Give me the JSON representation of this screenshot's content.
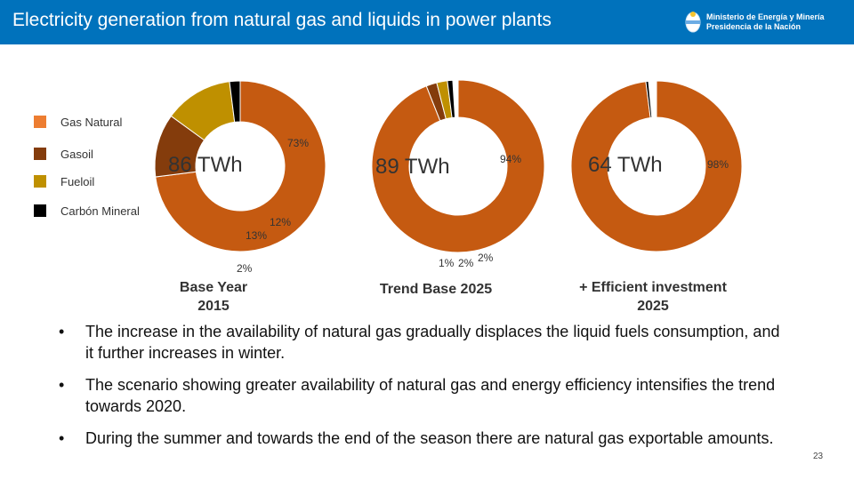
{
  "header": {
    "title": "Electricity generation from natural gas and liquids in power plants",
    "logo_line1": "Ministerio de Energía y Minería",
    "logo_line2": "Presidencia de la Nación"
  },
  "colors": {
    "header_bg": "#0072bc",
    "gas": "#c55a11",
    "gasoil": "#843c0c",
    "fueloil": "#bf9000",
    "carbon": "#000000"
  },
  "chart_data": [
    {
      "type": "pie",
      "title": "Base Year 2015",
      "total_label": "86 TWh",
      "series": [
        {
          "name": "Gas Natural",
          "value": 73,
          "label": "73%"
        },
        {
          "name": "Gasoil",
          "value": 12,
          "label": "12%"
        },
        {
          "name": "Fueloil",
          "value": 13,
          "label": "13%"
        },
        {
          "name": "Carbón Mineral",
          "value": 2,
          "label": "2%"
        }
      ]
    },
    {
      "type": "pie",
      "title": "Trend Base 2025",
      "total_label": "89 TWh",
      "series": [
        {
          "name": "Gas Natural",
          "value": 94,
          "label": "94%"
        },
        {
          "name": "Gasoil",
          "value": 2,
          "label": "2%"
        },
        {
          "name": "Fueloil",
          "value": 2,
          "label": "2%"
        },
        {
          "name": "Carbón Mineral",
          "value": 1,
          "label": "1%"
        }
      ]
    },
    {
      "type": "pie",
      "title": "+ Efficient investment 2025",
      "total_label": "64 TWh",
      "series": [
        {
          "name": "Gas Natural",
          "value": 98,
          "label": "98%"
        },
        {
          "name": "Carbón Mineral",
          "value": 0.5,
          "label": ""
        }
      ]
    }
  ],
  "legend": [
    {
      "label": "Gas Natural",
      "color": "#ed7d31"
    },
    {
      "label": "Gasoil",
      "color": "#843c0c"
    },
    {
      "label": "Fueloil",
      "color": "#bf9000"
    },
    {
      "label": "Carbón Mineral",
      "color": "#000000"
    }
  ],
  "scenarios": {
    "s1": {
      "line1": "Base Year",
      "line2": "2015"
    },
    "s2": {
      "line1": "Trend Base 2025"
    },
    "s3": {
      "line1": "+ Efficient investment",
      "line2": "2025"
    }
  },
  "bullets": [
    {
      "text": "The increase in the availability of natural gas gradually displaces the liquid fuels consumption, and it further increases in winter."
    },
    {
      "text": "The scenario showing greater availability of natural gas and energy efficiency intensifies the trend towards 2020."
    },
    {
      "text": "During the summer and towards the end of the season there are natural gas exportable amounts."
    }
  ],
  "bullet_char": "•",
  "page_number": "23"
}
